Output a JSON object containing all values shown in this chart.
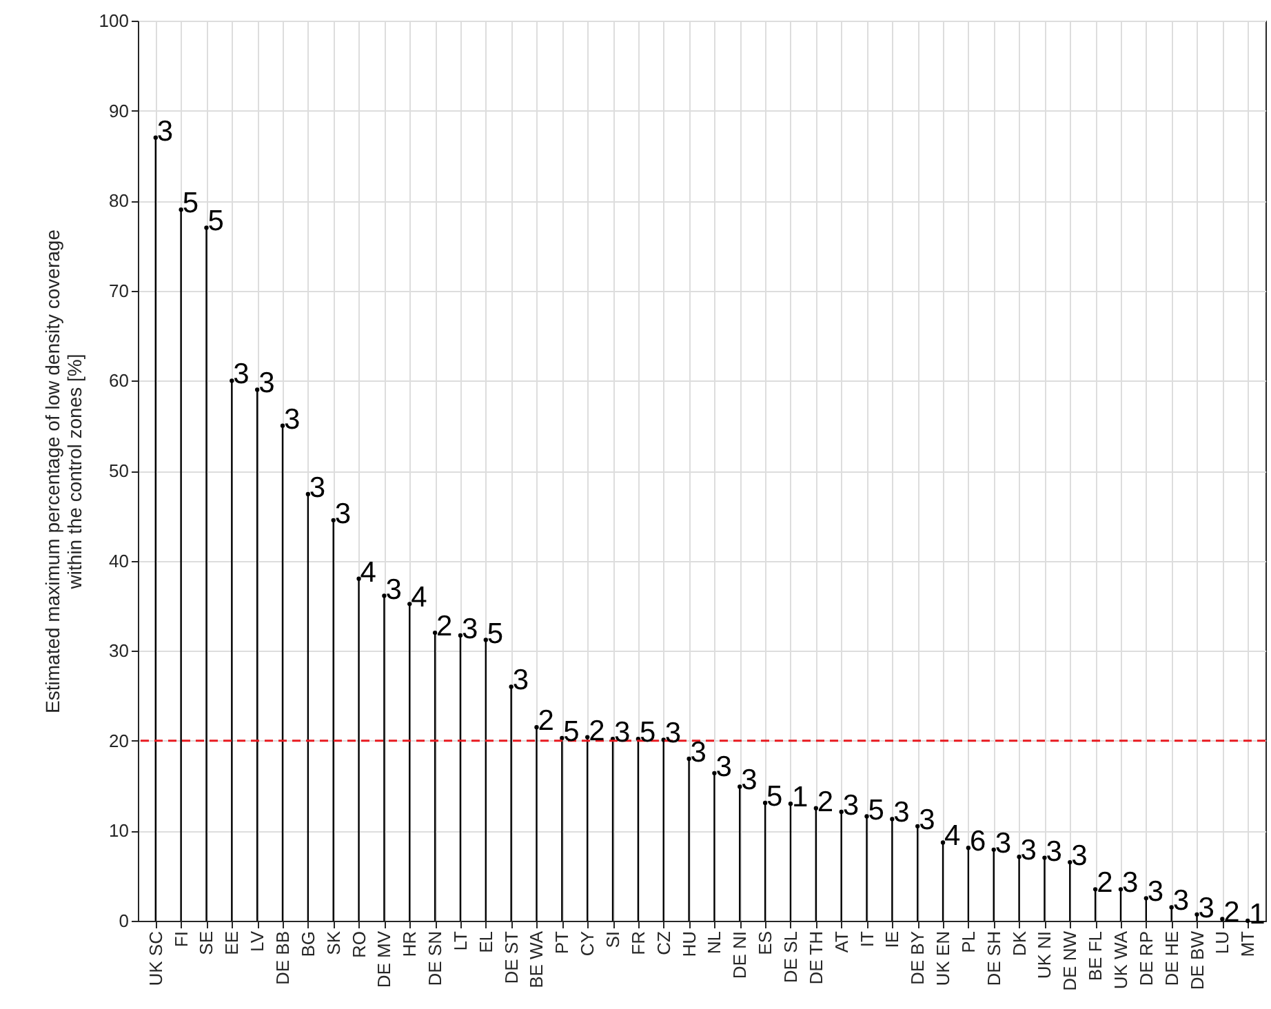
{
  "chart_data": {
    "type": "lollipop",
    "ylabel": "Estimated maximum percentage of low density coverage\nwithin the control zones [%]",
    "categories": [
      "UK SC",
      "FI",
      "SE",
      "EE",
      "LV",
      "DE BB",
      "BG",
      "SK",
      "RO",
      "DE MV",
      "HR",
      "DE SN",
      "LT",
      "EL",
      "DE ST",
      "BE WA",
      "PT",
      "CY",
      "SI",
      "FR",
      "CZ",
      "HU",
      "NL",
      "DE NI",
      "ES",
      "DE SL",
      "DE TH",
      "AT",
      "IT",
      "IE",
      "DE BY",
      "UK EN",
      "PL",
      "DE SH",
      "DK",
      "UK NI",
      "DE NW",
      "BE FL",
      "UK WA",
      "DE RP",
      "DE HE",
      "DE BW",
      "LU",
      "MT"
    ],
    "values": [
      87,
      79,
      77,
      60,
      59,
      55,
      47.4,
      44.5,
      38,
      36.1,
      35.2,
      32,
      31.7,
      31.2,
      26,
      21.5,
      20.3,
      20.4,
      20.2,
      20.2,
      20.1,
      18,
      16.4,
      14.9,
      13.1,
      13,
      12.5,
      12.1,
      11.6,
      11.3,
      10.5,
      8.7,
      8.1,
      7.9,
      7.1,
      7,
      6.5,
      3.5,
      3.5,
      2.5,
      1.5,
      0.7,
      0.2,
      0
    ],
    "annotations": [
      {
        "text": "3",
        "x": "UK SC",
        "y": 87
      },
      {
        "text": "5",
        "x": "FI",
        "y": 79
      },
      {
        "text": "5",
        "x": "SE",
        "y": 77
      },
      {
        "text": "3",
        "x": "EE",
        "y": 60
      },
      {
        "text": "3",
        "x": "LV",
        "y": 59
      },
      {
        "text": "3",
        "x": "DE BB",
        "y": 55
      },
      {
        "text": "3",
        "x": "BG",
        "y": 47.4
      },
      {
        "text": "3",
        "x": "SK",
        "y": 44.5
      },
      {
        "text": "4",
        "x": "RO",
        "y": 38
      },
      {
        "text": "3",
        "x": "DE MV",
        "y": 36.1
      },
      {
        "text": "4",
        "x": "HR",
        "y": 35.2
      },
      {
        "text": "2",
        "x": "DE SN",
        "y": 32
      },
      {
        "text": "3",
        "x": "LT",
        "y": 31.7
      },
      {
        "text": "5",
        "x": "EL",
        "y": 31.2
      },
      {
        "text": "3",
        "x": "DE ST",
        "y": 26
      },
      {
        "text": "2",
        "x": "BE WA",
        "y": 21.5
      },
      {
        "text": "5",
        "x": "PT",
        "y": 20.3
      },
      {
        "text": "2",
        "x": "CY",
        "y": 20.4
      },
      {
        "text": "3",
        "x": "SI",
        "y": 20.2
      },
      {
        "text": "5",
        "x": "FR",
        "y": 20.2
      },
      {
        "text": "3",
        "x": "CZ",
        "y": 20.1
      },
      {
        "text": "3",
        "x": "HU",
        "y": 18
      },
      {
        "text": "3",
        "x": "NL",
        "y": 16.4
      },
      {
        "text": "3",
        "x": "DE NI",
        "y": 14.9
      },
      {
        "text": "5",
        "x": "ES",
        "y": 13.1
      },
      {
        "text": "1",
        "x": "DE SL",
        "y": 13
      },
      {
        "text": "2",
        "x": "DE TH",
        "y": 12.5
      },
      {
        "text": "3",
        "x": "AT",
        "y": 12.1
      },
      {
        "text": "5",
        "x": "IT",
        "y": 11.6
      },
      {
        "text": "3",
        "x": "IE",
        "y": 11.3
      },
      {
        "text": "3",
        "x": "DE BY",
        "y": 10.5
      },
      {
        "text": "4",
        "x": "UK EN",
        "y": 8.7
      },
      {
        "text": "6",
        "x": "PL",
        "y": 8.1
      },
      {
        "text": "3",
        "x": "DE SH",
        "y": 7.9
      },
      {
        "text": "3",
        "x": "DK",
        "y": 7.1
      },
      {
        "text": "3",
        "x": "UK NI",
        "y": 7
      },
      {
        "text": "3",
        "x": "DE NW",
        "y": 6.5
      },
      {
        "text": "2",
        "x": "BE FL",
        "y": 3.5
      },
      {
        "text": "3",
        "x": "UK WA",
        "y": 3.5
      },
      {
        "text": "3",
        "x": "DE RP",
        "y": 2.5
      },
      {
        "text": "3",
        "x": "DE HE",
        "y": 1.5
      },
      {
        "text": "3",
        "x": "DE BW",
        "y": 0.7
      },
      {
        "text": "2",
        "x": "LU",
        "y": 0.2
      },
      {
        "text": "1",
        "x": "MT",
        "y": 0
      }
    ],
    "color": "#000000",
    "ylim": [
      0,
      100
    ],
    "yticks": [
      0,
      10,
      20,
      30,
      40,
      50,
      60,
      70,
      80,
      90,
      100
    ],
    "grid": true,
    "marker": "circle",
    "ref_lines": [
      {
        "axis": "y",
        "value": 20,
        "color": "#e8191f",
        "line_style": "dashed"
      }
    ]
  }
}
